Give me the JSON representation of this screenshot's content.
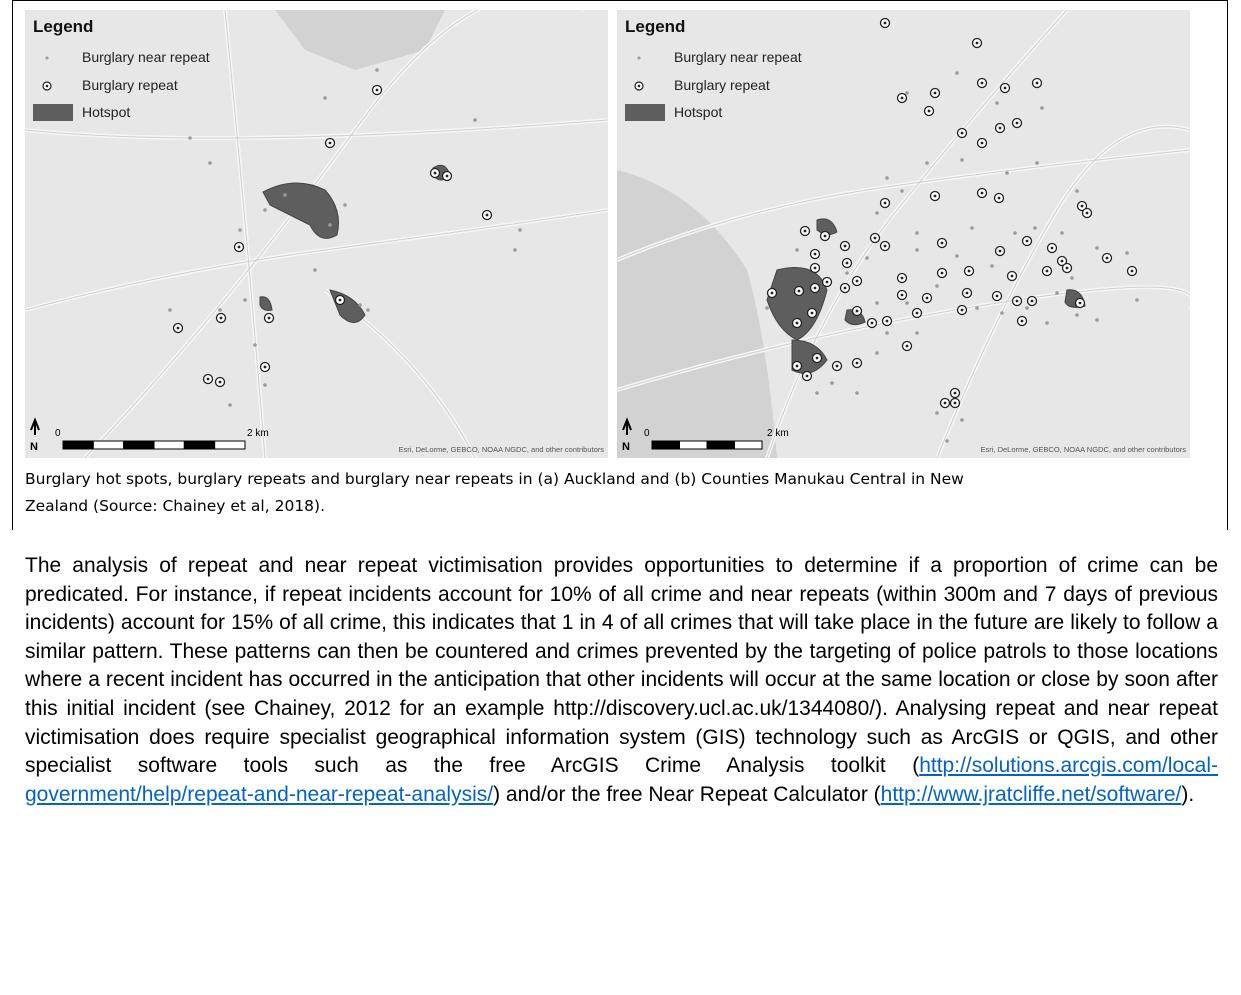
{
  "maps": [
    {
      "legend": {
        "title": "Legend",
        "items": [
          "Burglary near repeat",
          "Burglary repeat",
          "Hotspot"
        ]
      },
      "scale": {
        "start": "0",
        "end": "2 km"
      },
      "north": "N",
      "attribution": "Esri, DeLorme, GEBCO, NOAA NGDC, and other contributors"
    },
    {
      "legend": {
        "title": "Legend",
        "items": [
          "Burglary near repeat",
          "Burglary repeat",
          "Hotspot"
        ]
      },
      "scale": {
        "start": "0",
        "end": "2 km"
      },
      "north": "N",
      "attribution": "Esri, DeLorme, GEBCO, NOAA NGDC, and other contributors"
    }
  ],
  "caption": "Burglary hot spots, burglary repeats and burglary near repeats in (a) Auckland and (b) Counties Manukau Central in New Zealand (Source: Chainey et al, 2018).",
  "body": {
    "segments": [
      {
        "text": "The analysis of repeat and near repeat victimisation provides opportunities to determine if a proportion of crime can be predicated.  For instance, if repeat incidents account for 10% of all crime and near repeats (within 300m and 7 days of previous incidents) account for 15% of all crime, this indicates that 1 in 4 of all crimes that will take place in the future are likely to follow a similar pattern.  These patterns can then be countered and crimes prevented by the targeting of police patrols to those locations where a recent incident has occurred in the anticipation that other incidents will occur at the same location or close by soon after this initial incident (see Chainey, 2012 for an example http://discovery.ucl.ac.uk/1344080/).  Analysing repeat and near repeat victimisation does require specialist geographical information system (GIS) technology such as ArcGIS or QGIS, and other specialist software tools such as the free ArcGIS Crime Analysis toolkit ("
      },
      {
        "link": "http://solutions.arcgis.com/local-government/help/repeat-and-near-repeat-analysis/"
      },
      {
        "text": ") and/or the free Near Repeat Calculator ("
      },
      {
        "link": "http://www.jratcliffe.net/software/"
      },
      {
        "text": ")."
      }
    ]
  }
}
